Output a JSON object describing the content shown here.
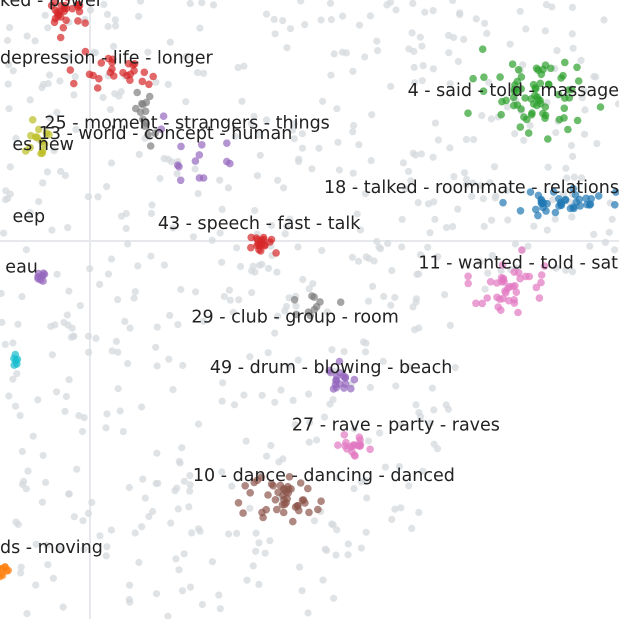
{
  "chart_data": {
    "type": "scatter",
    "title": "",
    "xlabel": "",
    "ylabel": "",
    "grid": true,
    "background_point_color": "#d6d9de",
    "clusters": [
      {
        "label": "ked - power",
        "color": "#d62728",
        "x": 0.5,
        "y": 8.6
      },
      {
        "label": "depression - life - longer",
        "color": "#d62728",
        "x": 1.4,
        "y": 7.8
      },
      {
        "label": "4 - said - told - massage",
        "color": "#2ca02c",
        "x": 7.5,
        "y": 7.35
      },
      {
        "label": "25 - moment - strangers - things",
        "color": "#7f7f7f",
        "x": 2.6,
        "y": 6.9
      },
      {
        "label": "13 - world - concept - human",
        "color": "#9467bd",
        "x": 2.3,
        "y": 6.75
      },
      {
        "label": "es new",
        "color": "#bcbd22",
        "x": 0.6,
        "y": 6.6
      },
      {
        "label": "18 - talked - roommate - relations",
        "color": "#1f77b4",
        "x": 7.9,
        "y": 6.0
      },
      {
        "label": "43 - speech - fast - talk",
        "color": "#d62728",
        "x": 3.6,
        "y": 5.5
      },
      {
        "label": "eep",
        "color": "#bcbd22",
        "x": 0.4,
        "y": 5.6
      },
      {
        "label": "11 - wanted - told - sat",
        "color": "#e377c2",
        "x": 7.2,
        "y": 4.95
      },
      {
        "label": "eau",
        "color": "#9467bd",
        "x": 0.3,
        "y": 4.9
      },
      {
        "label": "29 - club - group - room",
        "color": "#7f7f7f",
        "x": 4.1,
        "y": 4.2
      },
      {
        "label": "49 - drum - blowing - beach",
        "color": "#9467bd",
        "x": 4.6,
        "y": 3.5
      },
      {
        "label": "27 - rave - party - raves",
        "color": "#e377c2",
        "x": 5.5,
        "y": 2.7
      },
      {
        "label": "10 - dance - dancing - danced",
        "color": "#8c564b",
        "x": 4.5,
        "y": 2.0
      },
      {
        "label": "ds - moving",
        "color": "#ff7f0e",
        "x": 0.3,
        "y": 1.0
      },
      {
        "label": "",
        "color": "#17becf",
        "x": 0.2,
        "y": 3.6
      }
    ]
  }
}
